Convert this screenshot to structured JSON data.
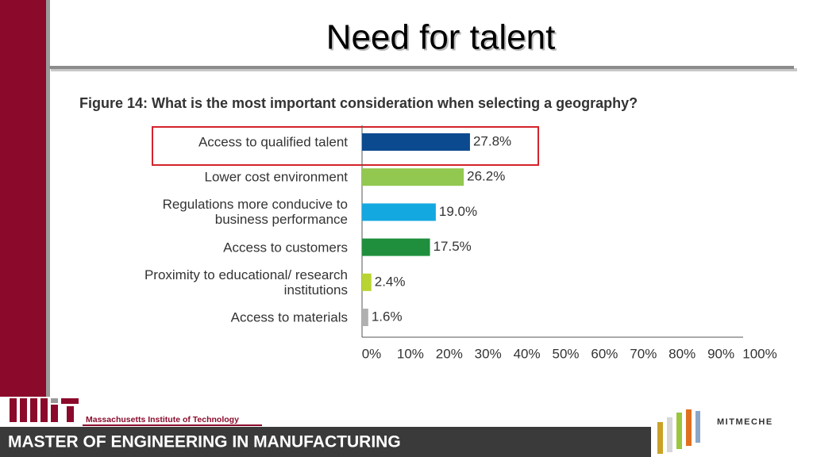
{
  "slide_title": "Need for talent",
  "chart_data": {
    "type": "hbar",
    "title": "Figure 14: What is the most important consideration when selecting a geography?",
    "categories": [
      "Access to qualified talent",
      "Lower cost environment",
      "Regulations more conducive to business performance",
      "Access to customers",
      "Proximity to educational/ research institutions",
      "Access to materials"
    ],
    "values": [
      27.8,
      26.2,
      19.0,
      17.5,
      2.4,
      1.6
    ],
    "value_labels": [
      "27.8%",
      "26.2%",
      "19.0%",
      "17.5%",
      "2.4%",
      "1.6%"
    ],
    "colors": [
      "#0b4a8f",
      "#92c84f",
      "#14a8e0",
      "#1f8f3e",
      "#b8d433",
      "#b0b0b0"
    ],
    "xlim": [
      0,
      100
    ],
    "xticks": [
      {
        "value": 0,
        "label": "0%"
      },
      {
        "value": 10,
        "label": "10%"
      },
      {
        "value": 20,
        "label": "20%"
      },
      {
        "value": 30,
        "label": "30%"
      },
      {
        "value": 40,
        "label": "40%"
      },
      {
        "value": 50,
        "label": "50%"
      },
      {
        "value": 60,
        "label": "60%"
      },
      {
        "value": 70,
        "label": "70%"
      },
      {
        "value": 80,
        "label": "80%"
      },
      {
        "value": 90,
        "label": "90%"
      },
      {
        "value": 100,
        "label": "100%"
      }
    ]
  },
  "footer": {
    "institution": "Massachusetts Institute of Technology",
    "program": "MASTER OF ENGINEERING IN MANUFACTURING",
    "logo_text": "MITMECHE"
  }
}
